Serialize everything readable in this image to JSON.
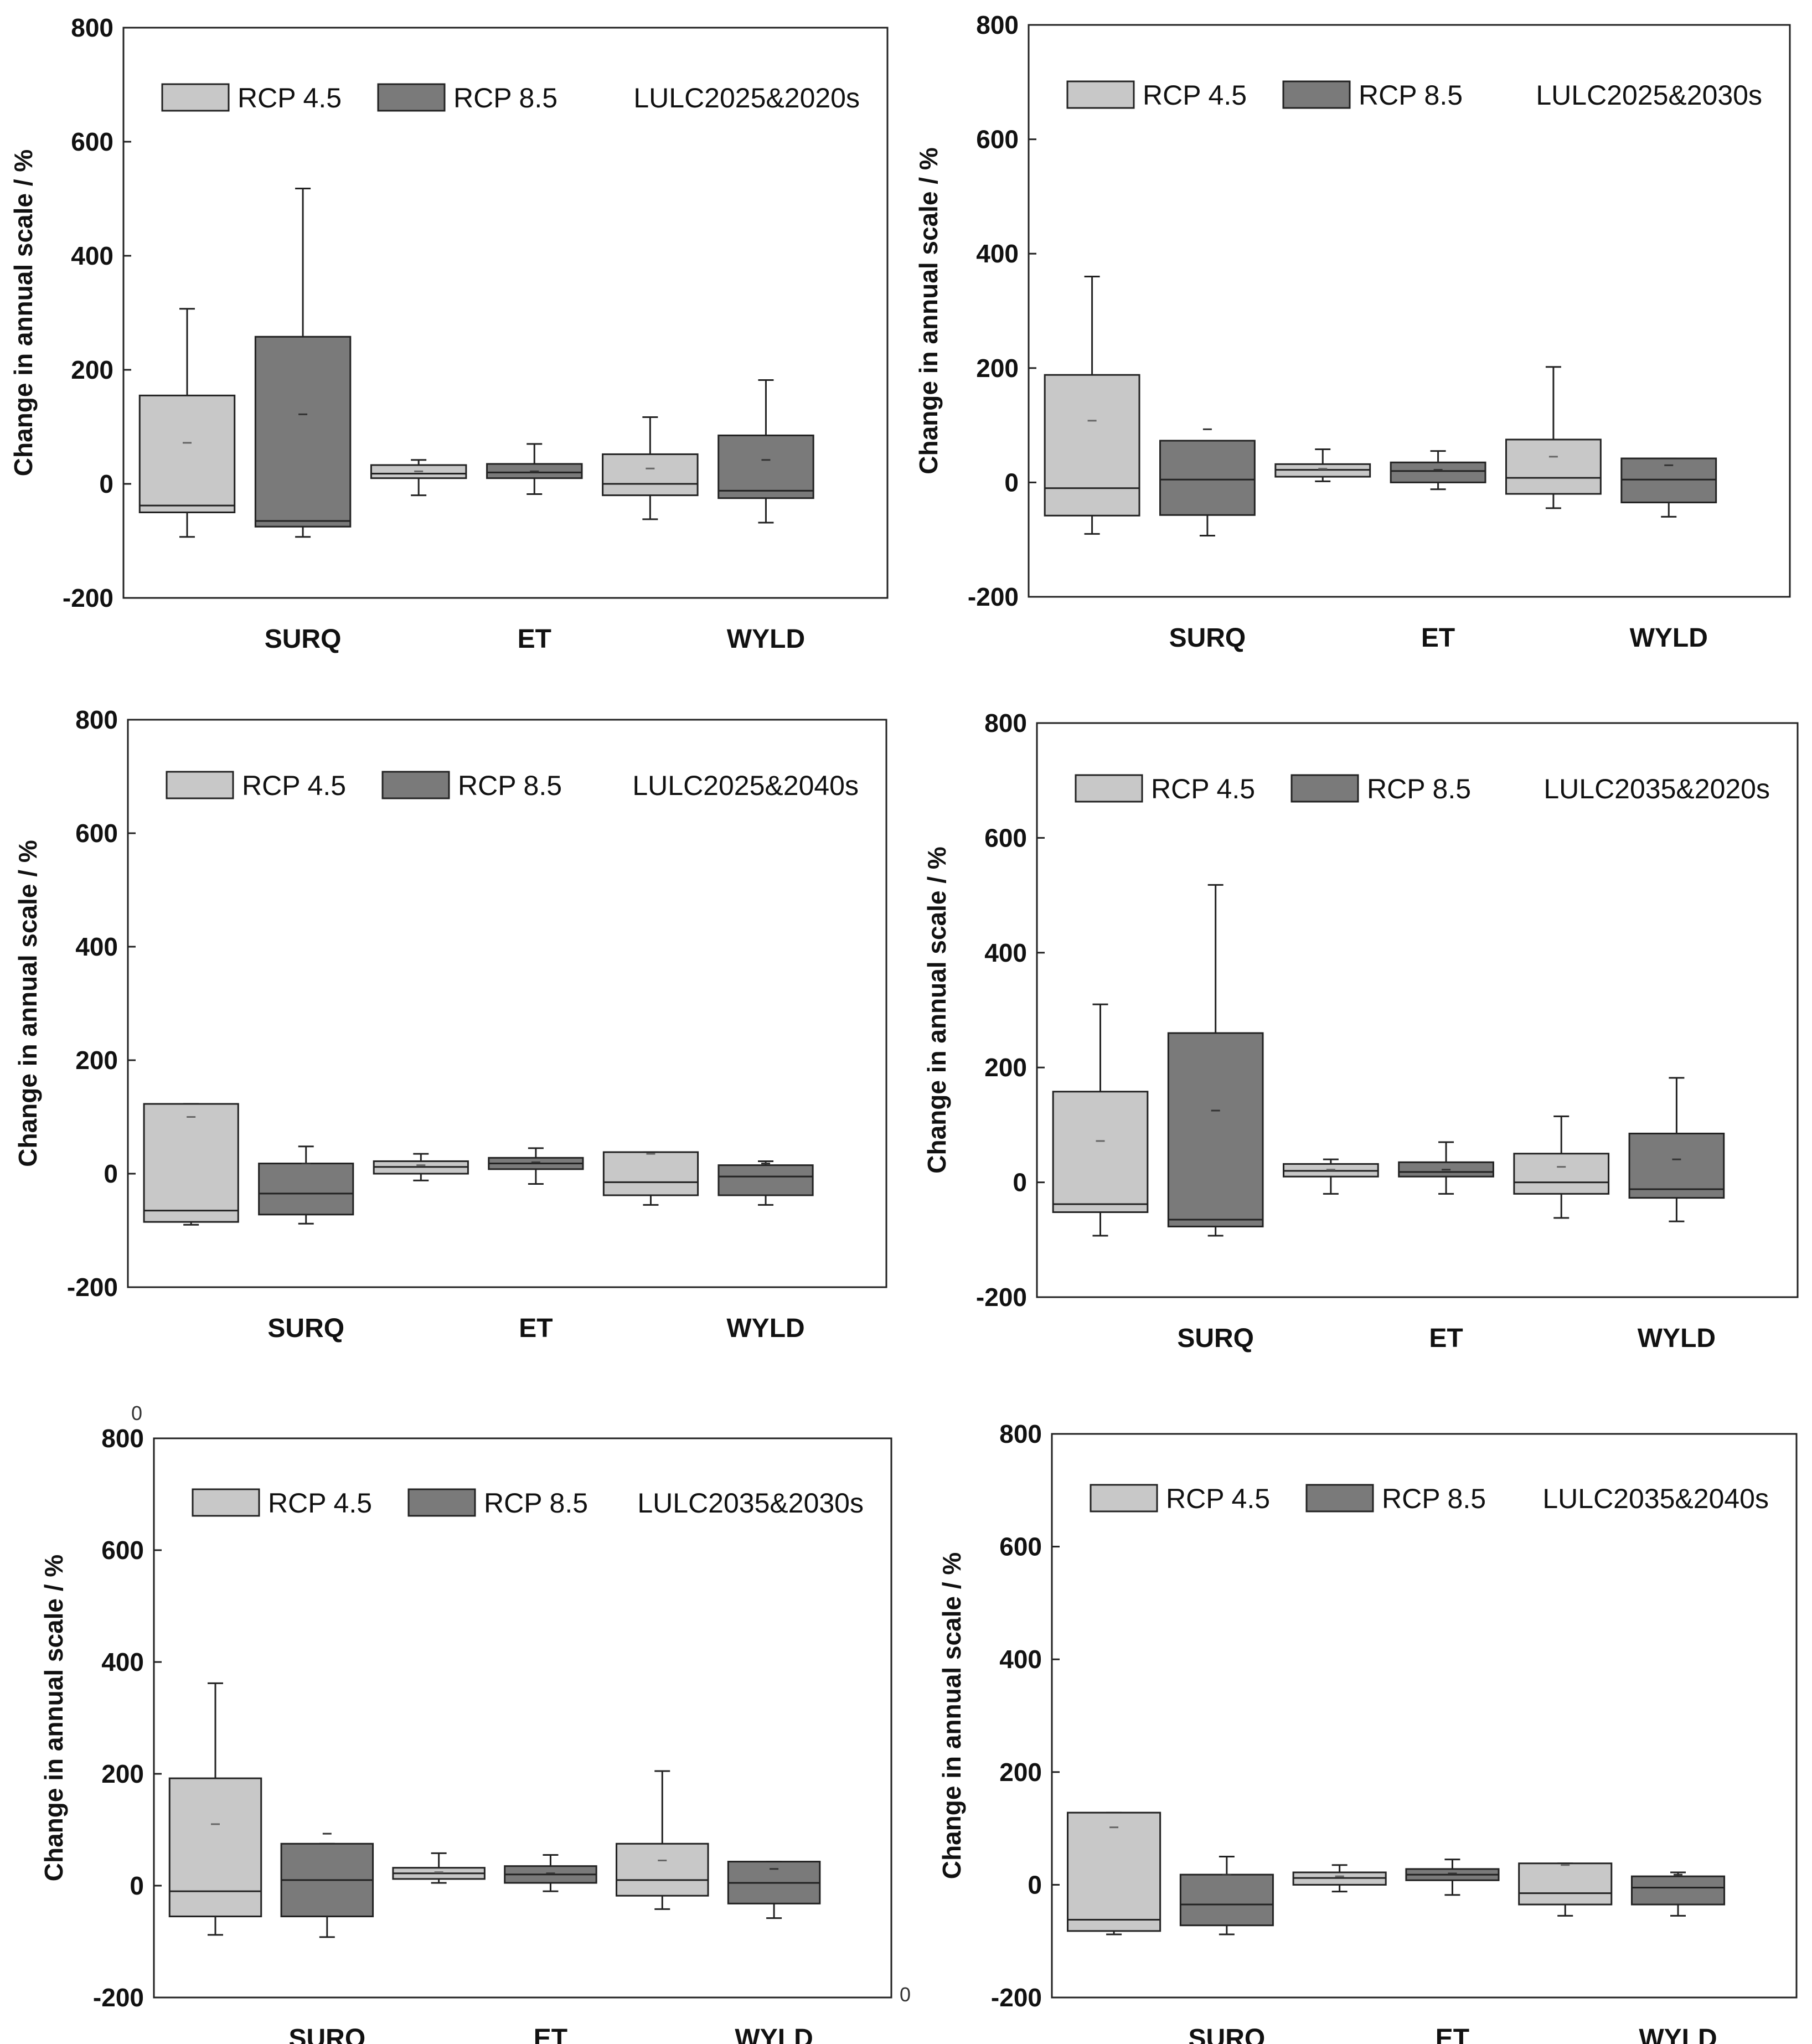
{
  "figure": {
    "stray_labels": [
      "0",
      "0"
    ]
  },
  "chart_data": [
    {
      "type": "box",
      "title": "LULC2025&2020s",
      "xlabel": "",
      "ylabel": "Change in annual scale / %",
      "ylim": [
        -200,
        800
      ],
      "yticks": [
        -200,
        0,
        200,
        400,
        600,
        800
      ],
      "categories": [
        "SURQ",
        "ET",
        "WYLD"
      ],
      "legend": [
        "RCP 4.5",
        "RCP 8.5"
      ],
      "colors": {
        "RCP 4.5": "#c8c8c8",
        "RCP 8.5": "#7a7a7a"
      },
      "series": [
        {
          "name": "RCP 4.5",
          "boxes": [
            {
              "category": "SURQ",
              "min": -93,
              "q1": -50,
              "median": -38,
              "q3": 155,
              "max": 307,
              "mean": 72
            },
            {
              "category": "ET",
              "min": -20,
              "q1": 10,
              "median": 18,
              "q3": 33,
              "max": 42,
              "mean": 22
            },
            {
              "category": "WYLD",
              "min": -62,
              "q1": -20,
              "median": 0,
              "q3": 52,
              "max": 117,
              "mean": 27
            }
          ]
        },
        {
          "name": "RCP 8.5",
          "boxes": [
            {
              "category": "SURQ",
              "min": -93,
              "q1": -75,
              "median": -65,
              "q3": 258,
              "max": 518,
              "mean": 122
            },
            {
              "category": "ET",
              "min": -18,
              "q1": 10,
              "median": 20,
              "q3": 35,
              "max": 70,
              "mean": 22
            },
            {
              "category": "WYLD",
              "min": -68,
              "q1": -25,
              "median": -12,
              "q3": 85,
              "max": 182,
              "mean": 42
            }
          ]
        }
      ]
    },
    {
      "type": "box",
      "title": "LULC2025&2030s",
      "xlabel": "",
      "ylabel": "Change in annual scale / %",
      "ylim": [
        -200,
        800
      ],
      "yticks": [
        -200,
        0,
        200,
        400,
        600,
        800
      ],
      "categories": [
        "SURQ",
        "ET",
        "WYLD"
      ],
      "legend": [
        "RCP 4.5",
        "RCP 8.5"
      ],
      "colors": {
        "RCP 4.5": "#c8c8c8",
        "RCP 8.5": "#7a7a7a"
      },
      "series": [
        {
          "name": "RCP 4.5",
          "boxes": [
            {
              "category": "SURQ",
              "min": -90,
              "q1": -58,
              "median": -10,
              "q3": 188,
              "max": 360,
              "mean": 108
            },
            {
              "category": "ET",
              "min": 2,
              "q1": 10,
              "median": 22,
              "q3": 32,
              "max": 58,
              "mean": 24
            },
            {
              "category": "WYLD",
              "min": -45,
              "q1": -20,
              "median": 8,
              "q3": 75,
              "max": 202,
              "mean": 45
            }
          ]
        },
        {
          "name": "RCP 8.5",
          "boxes": [
            {
              "category": "SURQ",
              "min": -93,
              "q1": -57,
              "median": 5,
              "q3": 73,
              "max": 73,
              "mean": 93
            },
            {
              "category": "ET",
              "min": -12,
              "q1": 0,
              "median": 20,
              "q3": 35,
              "max": 55,
              "mean": 22
            },
            {
              "category": "WYLD",
              "min": -60,
              "q1": -35,
              "median": 5,
              "q3": 42,
              "max": 42,
              "mean": 30
            }
          ]
        }
      ]
    },
    {
      "type": "box",
      "title": "LULC2025&2040s",
      "xlabel": "",
      "ylabel": "Change in annual scale / %",
      "ylim": [
        -200,
        800
      ],
      "yticks": [
        -200,
        0,
        200,
        400,
        600,
        800
      ],
      "categories": [
        "SURQ",
        "ET",
        "WYLD"
      ],
      "legend": [
        "RCP 4.5",
        "RCP 8.5"
      ],
      "colors": {
        "RCP 4.5": "#c8c8c8",
        "RCP 8.5": "#7a7a7a"
      },
      "series": [
        {
          "name": "RCP 4.5",
          "boxes": [
            {
              "category": "SURQ",
              "min": -90,
              "q1": -85,
              "median": -65,
              "q3": 123,
              "max": 123,
              "mean": 100
            },
            {
              "category": "ET",
              "min": -12,
              "q1": 0,
              "median": 12,
              "q3": 22,
              "max": 35,
              "mean": 15
            },
            {
              "category": "WYLD",
              "min": -55,
              "q1": -38,
              "median": -15,
              "q3": 38,
              "max": 38,
              "mean": 35
            }
          ]
        },
        {
          "name": "RCP 8.5",
          "boxes": [
            {
              "category": "SURQ",
              "min": -88,
              "q1": -72,
              "median": -35,
              "q3": 18,
              "max": 48,
              "mean": 18
            },
            {
              "category": "ET",
              "min": -18,
              "q1": 8,
              "median": 18,
              "q3": 28,
              "max": 45,
              "mean": 20
            },
            {
              "category": "WYLD",
              "min": -55,
              "q1": -38,
              "median": -5,
              "q3": 15,
              "max": 22,
              "mean": 18
            }
          ]
        }
      ]
    },
    {
      "type": "box",
      "title": "LULC2035&2020s",
      "xlabel": "",
      "ylabel": "Change in annual scale / %",
      "ylim": [
        -200,
        800
      ],
      "yticks": [
        -200,
        0,
        200,
        400,
        600,
        800
      ],
      "categories": [
        "SURQ",
        "ET",
        "WYLD"
      ],
      "legend": [
        "RCP 4.5",
        "RCP 8.5"
      ],
      "colors": {
        "RCP 4.5": "#c8c8c8",
        "RCP 8.5": "#7a7a7a"
      },
      "series": [
        {
          "name": "RCP 4.5",
          "boxes": [
            {
              "category": "SURQ",
              "min": -93,
              "q1": -52,
              "median": -38,
              "q3": 158,
              "max": 310,
              "mean": 72
            },
            {
              "category": "ET",
              "min": -20,
              "q1": 10,
              "median": 20,
              "q3": 32,
              "max": 40,
              "mean": 22
            },
            {
              "category": "WYLD",
              "min": -62,
              "q1": -20,
              "median": 0,
              "q3": 50,
              "max": 115,
              "mean": 27
            }
          ]
        },
        {
          "name": "RCP 8.5",
          "boxes": [
            {
              "category": "SURQ",
              "min": -93,
              "q1": -77,
              "median": -65,
              "q3": 260,
              "max": 518,
              "mean": 125
            },
            {
              "category": "ET",
              "min": -20,
              "q1": 10,
              "median": 18,
              "q3": 35,
              "max": 70,
              "mean": 22
            },
            {
              "category": "WYLD",
              "min": -68,
              "q1": -27,
              "median": -12,
              "q3": 85,
              "max": 182,
              "mean": 40
            }
          ]
        }
      ]
    },
    {
      "type": "box",
      "title": "LULC2035&2030s",
      "xlabel": "",
      "ylabel": "Change in annual scale / %",
      "ylim": [
        -200,
        800
      ],
      "yticks": [
        -200,
        0,
        200,
        400,
        600,
        800
      ],
      "categories": [
        "SURQ",
        "ET",
        "WYLD"
      ],
      "legend": [
        "RCP 4.5",
        "RCP 8.5"
      ],
      "colors": {
        "RCP 4.5": "#c8c8c8",
        "RCP 8.5": "#7a7a7a"
      },
      "series": [
        {
          "name": "RCP 4.5",
          "boxes": [
            {
              "category": "SURQ",
              "min": -88,
              "q1": -55,
              "median": -10,
              "q3": 192,
              "max": 362,
              "mean": 110
            },
            {
              "category": "ET",
              "min": 5,
              "q1": 12,
              "median": 22,
              "q3": 32,
              "max": 58,
              "mean": 24
            },
            {
              "category": "WYLD",
              "min": -42,
              "q1": -18,
              "median": 10,
              "q3": 75,
              "max": 205,
              "mean": 45
            }
          ]
        },
        {
          "name": "RCP 8.5",
          "boxes": [
            {
              "category": "SURQ",
              "min": -92,
              "q1": -55,
              "median": 10,
              "q3": 75,
              "max": 75,
              "mean": 93
            },
            {
              "category": "ET",
              "min": -10,
              "q1": 5,
              "median": 20,
              "q3": 35,
              "max": 55,
              "mean": 22
            },
            {
              "category": "WYLD",
              "min": -58,
              "q1": -32,
              "median": 5,
              "q3": 43,
              "max": 43,
              "mean": 30
            }
          ]
        }
      ]
    },
    {
      "type": "box",
      "title": "LULC2035&2040s",
      "xlabel": "",
      "ylabel": "Change in annual scale / %",
      "ylim": [
        -200,
        800
      ],
      "yticks": [
        -200,
        0,
        200,
        400,
        600,
        800
      ],
      "categories": [
        "SURQ",
        "ET",
        "WYLD"
      ],
      "legend": [
        "RCP 4.5",
        "RCP 8.5"
      ],
      "colors": {
        "RCP 4.5": "#c8c8c8",
        "RCP 8.5": "#7a7a7a"
      },
      "series": [
        {
          "name": "RCP 4.5",
          "boxes": [
            {
              "category": "SURQ",
              "min": -88,
              "q1": -82,
              "median": -62,
              "q3": 128,
              "max": 128,
              "mean": 102
            },
            {
              "category": "ET",
              "min": -12,
              "q1": 0,
              "median": 12,
              "q3": 22,
              "max": 35,
              "mean": 15
            },
            {
              "category": "WYLD",
              "min": -55,
              "q1": -35,
              "median": -15,
              "q3": 38,
              "max": 38,
              "mean": 35
            }
          ]
        },
        {
          "name": "RCP 8.5",
          "boxes": [
            {
              "category": "SURQ",
              "min": -88,
              "q1": -72,
              "median": -35,
              "q3": 18,
              "max": 50,
              "mean": 18
            },
            {
              "category": "ET",
              "min": -18,
              "q1": 8,
              "median": 18,
              "q3": 28,
              "max": 45,
              "mean": 20
            },
            {
              "category": "WYLD",
              "min": -55,
              "q1": -35,
              "median": -5,
              "q3": 15,
              "max": 22,
              "mean": 18
            }
          ]
        }
      ]
    }
  ]
}
